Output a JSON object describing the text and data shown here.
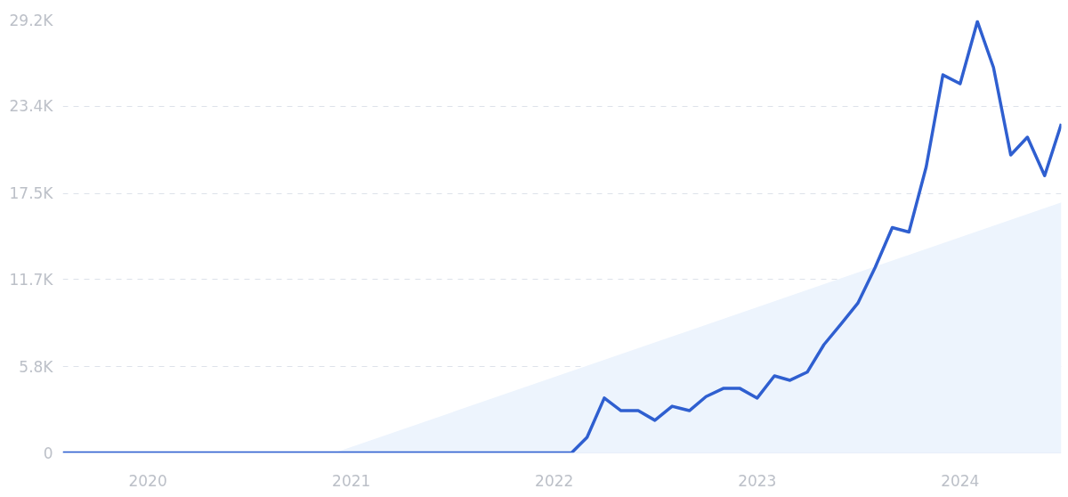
{
  "chart_data": {
    "type": "line",
    "x": [
      "2019-08",
      "2019-09",
      "2019-10",
      "2019-11",
      "2019-12",
      "2020-01",
      "2020-02",
      "2020-03",
      "2020-04",
      "2020-05",
      "2020-06",
      "2020-07",
      "2020-08",
      "2020-09",
      "2020-10",
      "2020-11",
      "2020-12",
      "2021-01",
      "2021-02",
      "2021-03",
      "2021-04",
      "2021-05",
      "2021-06",
      "2021-07",
      "2021-08",
      "2021-09",
      "2021-10",
      "2021-11",
      "2021-12",
      "2022-01",
      "2022-02",
      "2022-03",
      "2022-04",
      "2022-05",
      "2022-06",
      "2022-07",
      "2022-08",
      "2022-09",
      "2022-10",
      "2022-11",
      "2022-12",
      "2023-01",
      "2023-02",
      "2023-03",
      "2023-04",
      "2023-05",
      "2023-06",
      "2023-07",
      "2023-08",
      "2023-09",
      "2023-10",
      "2023-11",
      "2023-12",
      "2024-01",
      "2024-02",
      "2024-03",
      "2024-04",
      "2024-05",
      "2024-06",
      "2024-07"
    ],
    "series": [
      {
        "type": "area",
        "color": "#edf4fd",
        "x": [
          "2020-12",
          "2024-07"
        ],
        "values": [
          0,
          16900
        ]
      },
      {
        "color": "#2f5fd0",
        "values": [
          0,
          0,
          0,
          0,
          0,
          0,
          0,
          0,
          0,
          0,
          0,
          0,
          0,
          0,
          0,
          0,
          0,
          0,
          0,
          0,
          0,
          0,
          0,
          0,
          0,
          0,
          0,
          0,
          0,
          0,
          0,
          1050,
          3700,
          2850,
          2850,
          2200,
          3150,
          2850,
          3800,
          4350,
          4350,
          3700,
          5200,
          4900,
          5450,
          7300,
          8700,
          10100,
          12500,
          15200,
          14900,
          19300,
          25500,
          24900,
          29100,
          26000,
          20100,
          21300,
          18700,
          22200
        ]
      }
    ],
    "xlim": [
      "2019-08",
      "2024-07"
    ],
    "xticks": [
      "2020",
      "2021",
      "2022",
      "2023",
      "2024"
    ],
    "ylim": [
      0,
      29200
    ],
    "yticks": [
      0,
      {
        "value": 5800,
        "label": "5.8K"
      },
      {
        "value": 11700,
        "label": "11.7K"
      },
      {
        "value": 17500,
        "label": "17.5K"
      },
      {
        "value": 23400,
        "label": "23.4K"
      },
      {
        "value": 29200,
        "label": "29.2K"
      }
    ],
    "grid": "y",
    "line_style": "solid",
    "marker": "none"
  }
}
